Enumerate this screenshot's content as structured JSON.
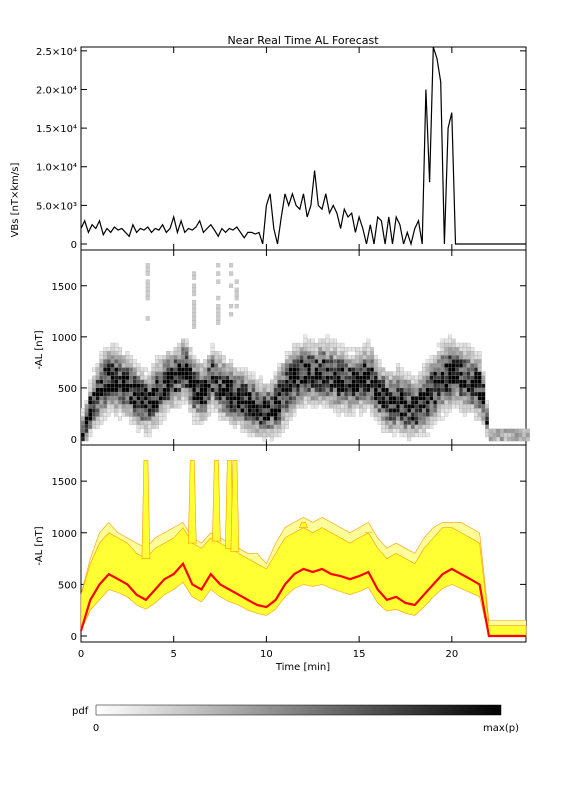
{
  "chart_data": [
    {
      "type": "line",
      "title": "Near Real Time AL Forecast",
      "ylabel": "VBs [nT×km/s]",
      "ylim": [
        0,
        25500
      ],
      "xlim": [
        0,
        24
      ],
      "yticks": [
        0,
        5000,
        10000,
        15000,
        20000,
        25000
      ],
      "ytick_labels": [
        "0",
        "5.0×10³",
        "1.0×10⁴",
        "1.5×10⁴",
        "2.0×10⁴",
        "2.5×10⁴"
      ],
      "series": [
        {
          "x": [
            0,
            0.2,
            0.4,
            0.6,
            0.8,
            1.0,
            1.2,
            1.4,
            1.6,
            1.8,
            2.0,
            2.2,
            2.4,
            2.6,
            2.8,
            3.0,
            3.2,
            3.4,
            3.6,
            3.8,
            4.0,
            4.2,
            4.4,
            4.6,
            4.8,
            5.0,
            5.2,
            5.4,
            5.6,
            5.8,
            6.0,
            6.2,
            6.4,
            6.6,
            6.8,
            7.0,
            7.2,
            7.4,
            7.6,
            7.8,
            8.0,
            8.2,
            8.4,
            8.6,
            8.8,
            9.0,
            9.2,
            9.4,
            9.6,
            9.8,
            10.0,
            10.2,
            10.4,
            10.6,
            10.8,
            11.0,
            11.2,
            11.4,
            11.6,
            11.8,
            12.0,
            12.2,
            12.4,
            12.6,
            12.8,
            13.0,
            13.2,
            13.4,
            13.6,
            13.8,
            14.0,
            14.2,
            14.4,
            14.6,
            14.8,
            15.0,
            15.2,
            15.4,
            15.6,
            15.8,
            16.0,
            16.2,
            16.4,
            16.6,
            16.8,
            17.0,
            17.2,
            17.4,
            17.6,
            17.8,
            18.0,
            18.2,
            18.4,
            18.6,
            18.8,
            19.0,
            19.2,
            19.4,
            19.6,
            19.8,
            20.0,
            20.2,
            20.4,
            21.0,
            22.0,
            23.0,
            24.0
          ],
          "y": [
            2000,
            3000,
            1500,
            2500,
            2000,
            3000,
            1200,
            2000,
            1500,
            2200,
            1800,
            2000,
            1500,
            1000,
            2500,
            1500,
            2000,
            1800,
            2200,
            1500,
            2000,
            1800,
            2500,
            1500,
            2000,
            3500,
            1500,
            3000,
            1500,
            2000,
            1800,
            2200,
            3000,
            1500,
            2000,
            2500,
            1800,
            1000,
            2000,
            1500,
            2000,
            1800,
            2200,
            1500,
            800,
            1500,
            1500,
            1300,
            1500,
            0,
            5000,
            6500,
            2000,
            0,
            3500,
            6500,
            5000,
            6500,
            5000,
            4500,
            6500,
            3500,
            5000,
            9500,
            5000,
            4500,
            6500,
            4000,
            5000,
            4000,
            2000,
            4500,
            3500,
            4000,
            1500,
            3500,
            2000,
            0,
            2500,
            0,
            3500,
            3000,
            0,
            3500,
            0,
            3500,
            2500,
            0,
            1500,
            0,
            2000,
            3000,
            0,
            20000,
            8000,
            25500,
            24000,
            21000,
            0,
            15000,
            17000,
            0,
            0,
            0,
            0,
            0,
            0
          ]
        }
      ]
    },
    {
      "type": "heatmap",
      "ylabel": "-AL [nT]",
      "ylim": [
        0,
        1850
      ],
      "xlim": [
        0,
        24
      ],
      "yticks": [
        0,
        500,
        1000,
        1500
      ],
      "ytick_labels": [
        "0",
        "500",
        "1000",
        "1500"
      ],
      "density_model": "pdf of -AL forecast per time bin; darker = higher probability; centered on the median curve with spread between the lower and upper bounds of panel 3"
    },
    {
      "type": "area",
      "ylabel": "-AL [nT]",
      "xlabel": "Time [min]",
      "ylim": [
        0,
        1850
      ],
      "xlim": [
        0,
        24
      ],
      "yticks": [
        0,
        500,
        1000,
        1500
      ],
      "ytick_labels": [
        "0",
        "500",
        "1000",
        "1500"
      ],
      "xticks": [
        0,
        5,
        10,
        15,
        20
      ],
      "xtick_labels": [
        "0",
        "5",
        "10",
        "15",
        "20"
      ],
      "colors": {
        "band": "#ffff33",
        "outer_band": "#ffff99",
        "band_edge": "#ff9900",
        "median": "#ff0000"
      },
      "x": [
        0,
        0.5,
        1,
        1.5,
        2,
        2.5,
        3,
        3.5,
        4,
        4.5,
        5,
        5.5,
        6,
        6.5,
        7,
        7.5,
        8,
        8.5,
        9,
        9.5,
        10,
        10.5,
        11,
        11.5,
        12,
        12.5,
        13,
        13.5,
        14,
        14.5,
        15,
        15.5,
        16,
        16.5,
        17,
        17.5,
        18,
        18.5,
        19,
        19.5,
        20,
        20.5,
        21,
        21.5,
        22,
        22.5,
        23,
        23.5,
        24
      ],
      "median": [
        50,
        350,
        500,
        600,
        550,
        500,
        400,
        350,
        450,
        550,
        600,
        700,
        500,
        450,
        600,
        500,
        450,
        400,
        350,
        300,
        280,
        350,
        500,
        600,
        650,
        620,
        650,
        600,
        580,
        550,
        580,
        620,
        450,
        350,
        380,
        320,
        300,
        400,
        500,
        600,
        650,
        600,
        550,
        500,
        0,
        0,
        0,
        0,
        0
      ],
      "lower": [
        50,
        250,
        350,
        450,
        420,
        380,
        300,
        260,
        320,
        400,
        450,
        520,
        380,
        330,
        450,
        380,
        330,
        300,
        250,
        220,
        200,
        260,
        380,
        460,
        500,
        480,
        500,
        460,
        430,
        400,
        430,
        470,
        320,
        240,
        260,
        220,
        200,
        280,
        380,
        460,
        500,
        460,
        420,
        380,
        0,
        0,
        0,
        0,
        0
      ],
      "upper": [
        400,
        700,
        900,
        1000,
        950,
        900,
        800,
        750,
        850,
        900,
        950,
        1050,
        900,
        850,
        950,
        900,
        850,
        800,
        750,
        700,
        650,
        800,
        950,
        1000,
        1050,
        1000,
        1050,
        1000,
        950,
        900,
        950,
        1000,
        850,
        750,
        800,
        750,
        700,
        850,
        950,
        1050,
        1050,
        1000,
        950,
        900,
        100,
        100,
        100,
        100,
        100
      ],
      "outer_upper": [
        400,
        750,
        1000,
        1100,
        1000,
        950,
        900,
        850,
        950,
        1000,
        1050,
        1100,
        950,
        900,
        1000,
        950,
        900,
        850,
        800,
        800,
        700,
        900,
        1050,
        1100,
        1150,
        1100,
        1150,
        1100,
        1050,
        1000,
        1050,
        1100,
        950,
        850,
        900,
        850,
        800,
        950,
        1050,
        1100,
        1100,
        1100,
        1050,
        1000,
        150,
        150,
        150,
        150,
        150
      ],
      "spikes": [
        [
          3.5,
          1700
        ],
        [
          6,
          1700
        ],
        [
          7.3,
          1700
        ],
        [
          8,
          1700
        ],
        [
          8.3,
          1700
        ],
        [
          12,
          1100
        ],
        [
          15.5,
          1000
        ]
      ]
    }
  ],
  "colorbar": {
    "label": "pdf",
    "min_label": "0",
    "max_label": "max(p)"
  }
}
